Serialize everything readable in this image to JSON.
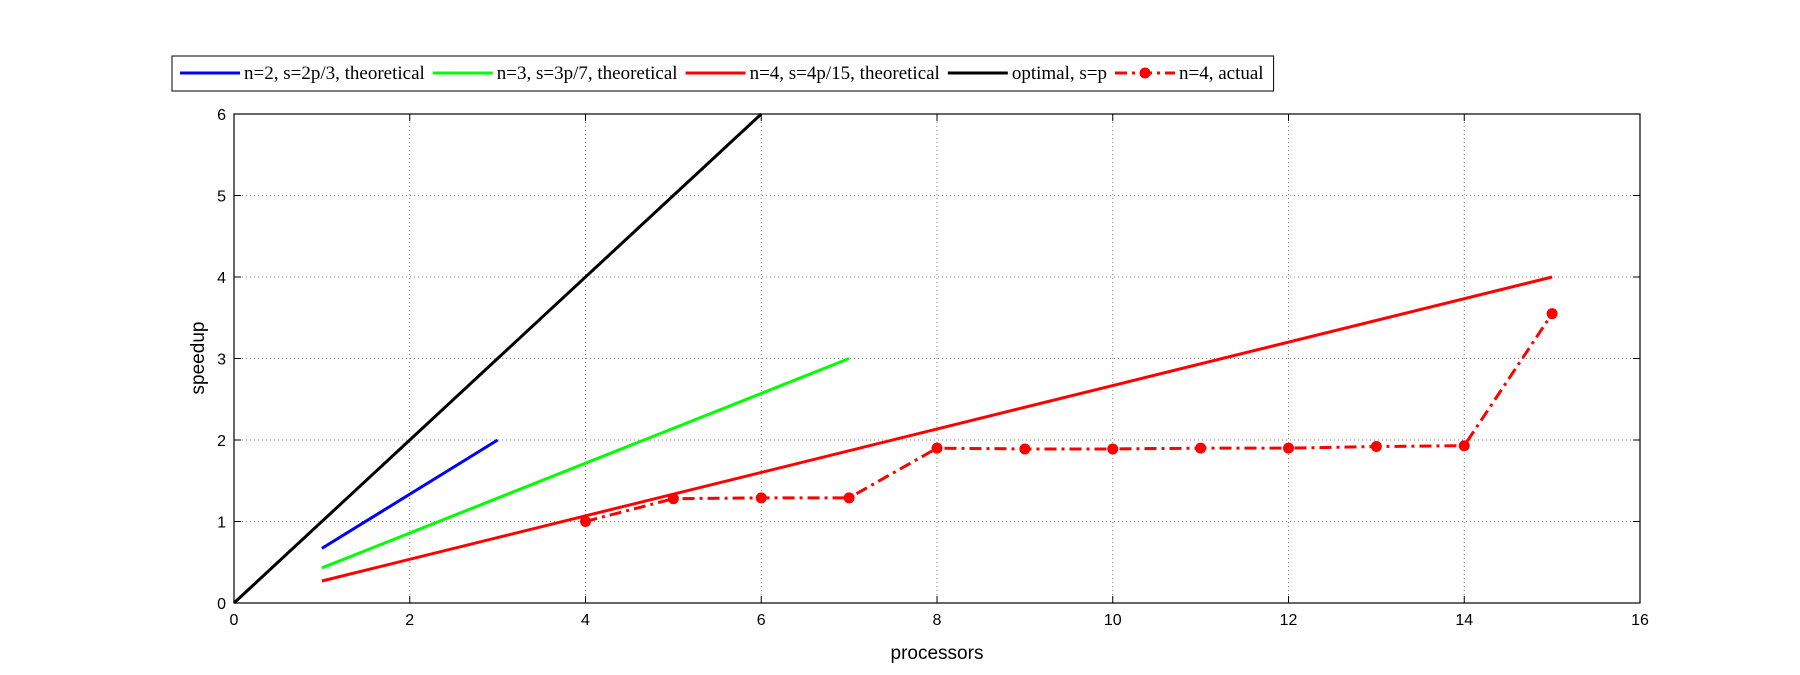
{
  "chart_data": {
    "type": "line",
    "title": "",
    "xlabel": "processors",
    "ylabel": "speedup",
    "xlim": [
      0,
      16
    ],
    "ylim": [
      0,
      6
    ],
    "xticks": [
      0,
      2,
      4,
      6,
      8,
      10,
      12,
      14,
      16
    ],
    "yticks": [
      0,
      1,
      2,
      3,
      4,
      5,
      6
    ],
    "grid": true,
    "legend_position": "top",
    "series": [
      {
        "name": "n=2, s=2p/3, theoretical",
        "color": "#0000ff",
        "style": "solid",
        "markers": false,
        "x": [
          1,
          3
        ],
        "y": [
          0.67,
          2
        ]
      },
      {
        "name": "n=3, s=3p/7, theoretical",
        "color": "#00ff00",
        "style": "solid",
        "markers": false,
        "x": [
          1,
          7
        ],
        "y": [
          0.43,
          3
        ]
      },
      {
        "name": "n=4, s=4p/15, theoretical",
        "color": "#ff0000",
        "style": "solid",
        "markers": false,
        "x": [
          1,
          15
        ],
        "y": [
          0.27,
          4
        ]
      },
      {
        "name": "optimal, s=p",
        "color": "#000000",
        "style": "solid",
        "markers": false,
        "x": [
          0,
          6
        ],
        "y": [
          0,
          6
        ]
      },
      {
        "name": "n=4, actual",
        "color": "#ff0000",
        "style": "dashdot",
        "markers": true,
        "x": [
          4,
          5,
          6,
          7,
          8,
          9,
          10,
          11,
          12,
          13,
          14,
          15
        ],
        "y": [
          1.0,
          1.28,
          1.29,
          1.29,
          1.9,
          1.89,
          1.89,
          1.9,
          1.9,
          1.92,
          1.93,
          3.55
        ]
      }
    ]
  }
}
